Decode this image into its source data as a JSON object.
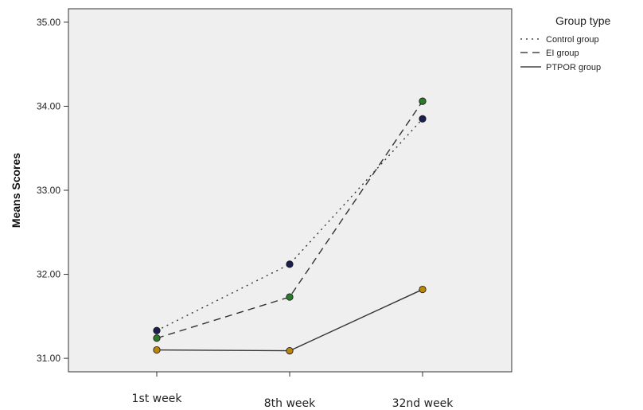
{
  "chart_data": {
    "type": "line",
    "title": "",
    "xlabel": "",
    "ylabel": "Means Scores",
    "categories": [
      "1st week",
      "8th week",
      "32nd week"
    ],
    "ylim": [
      30.84,
      35.16
    ],
    "yticks": [
      "31.00",
      "32.00",
      "33.00",
      "34.00",
      "35.00"
    ],
    "grid": false,
    "legend": {
      "title": "Group type",
      "position": "top-right"
    },
    "series": [
      {
        "name": "Control group",
        "line_style": "dotted",
        "marker_color": "#1a1f4d",
        "values": [
          31.33,
          32.12,
          33.85
        ]
      },
      {
        "name": "EI group",
        "line_style": "dashed",
        "marker_color": "#2a7a2a",
        "values": [
          31.24,
          31.73,
          34.06
        ]
      },
      {
        "name": "PTPOR group",
        "line_style": "solid",
        "marker_color": "#b8860b",
        "values": [
          31.1,
          31.09,
          31.82
        ]
      }
    ],
    "colors": {
      "plot_background": "#efefef",
      "line": "#333333",
      "axis": "#333333"
    }
  }
}
